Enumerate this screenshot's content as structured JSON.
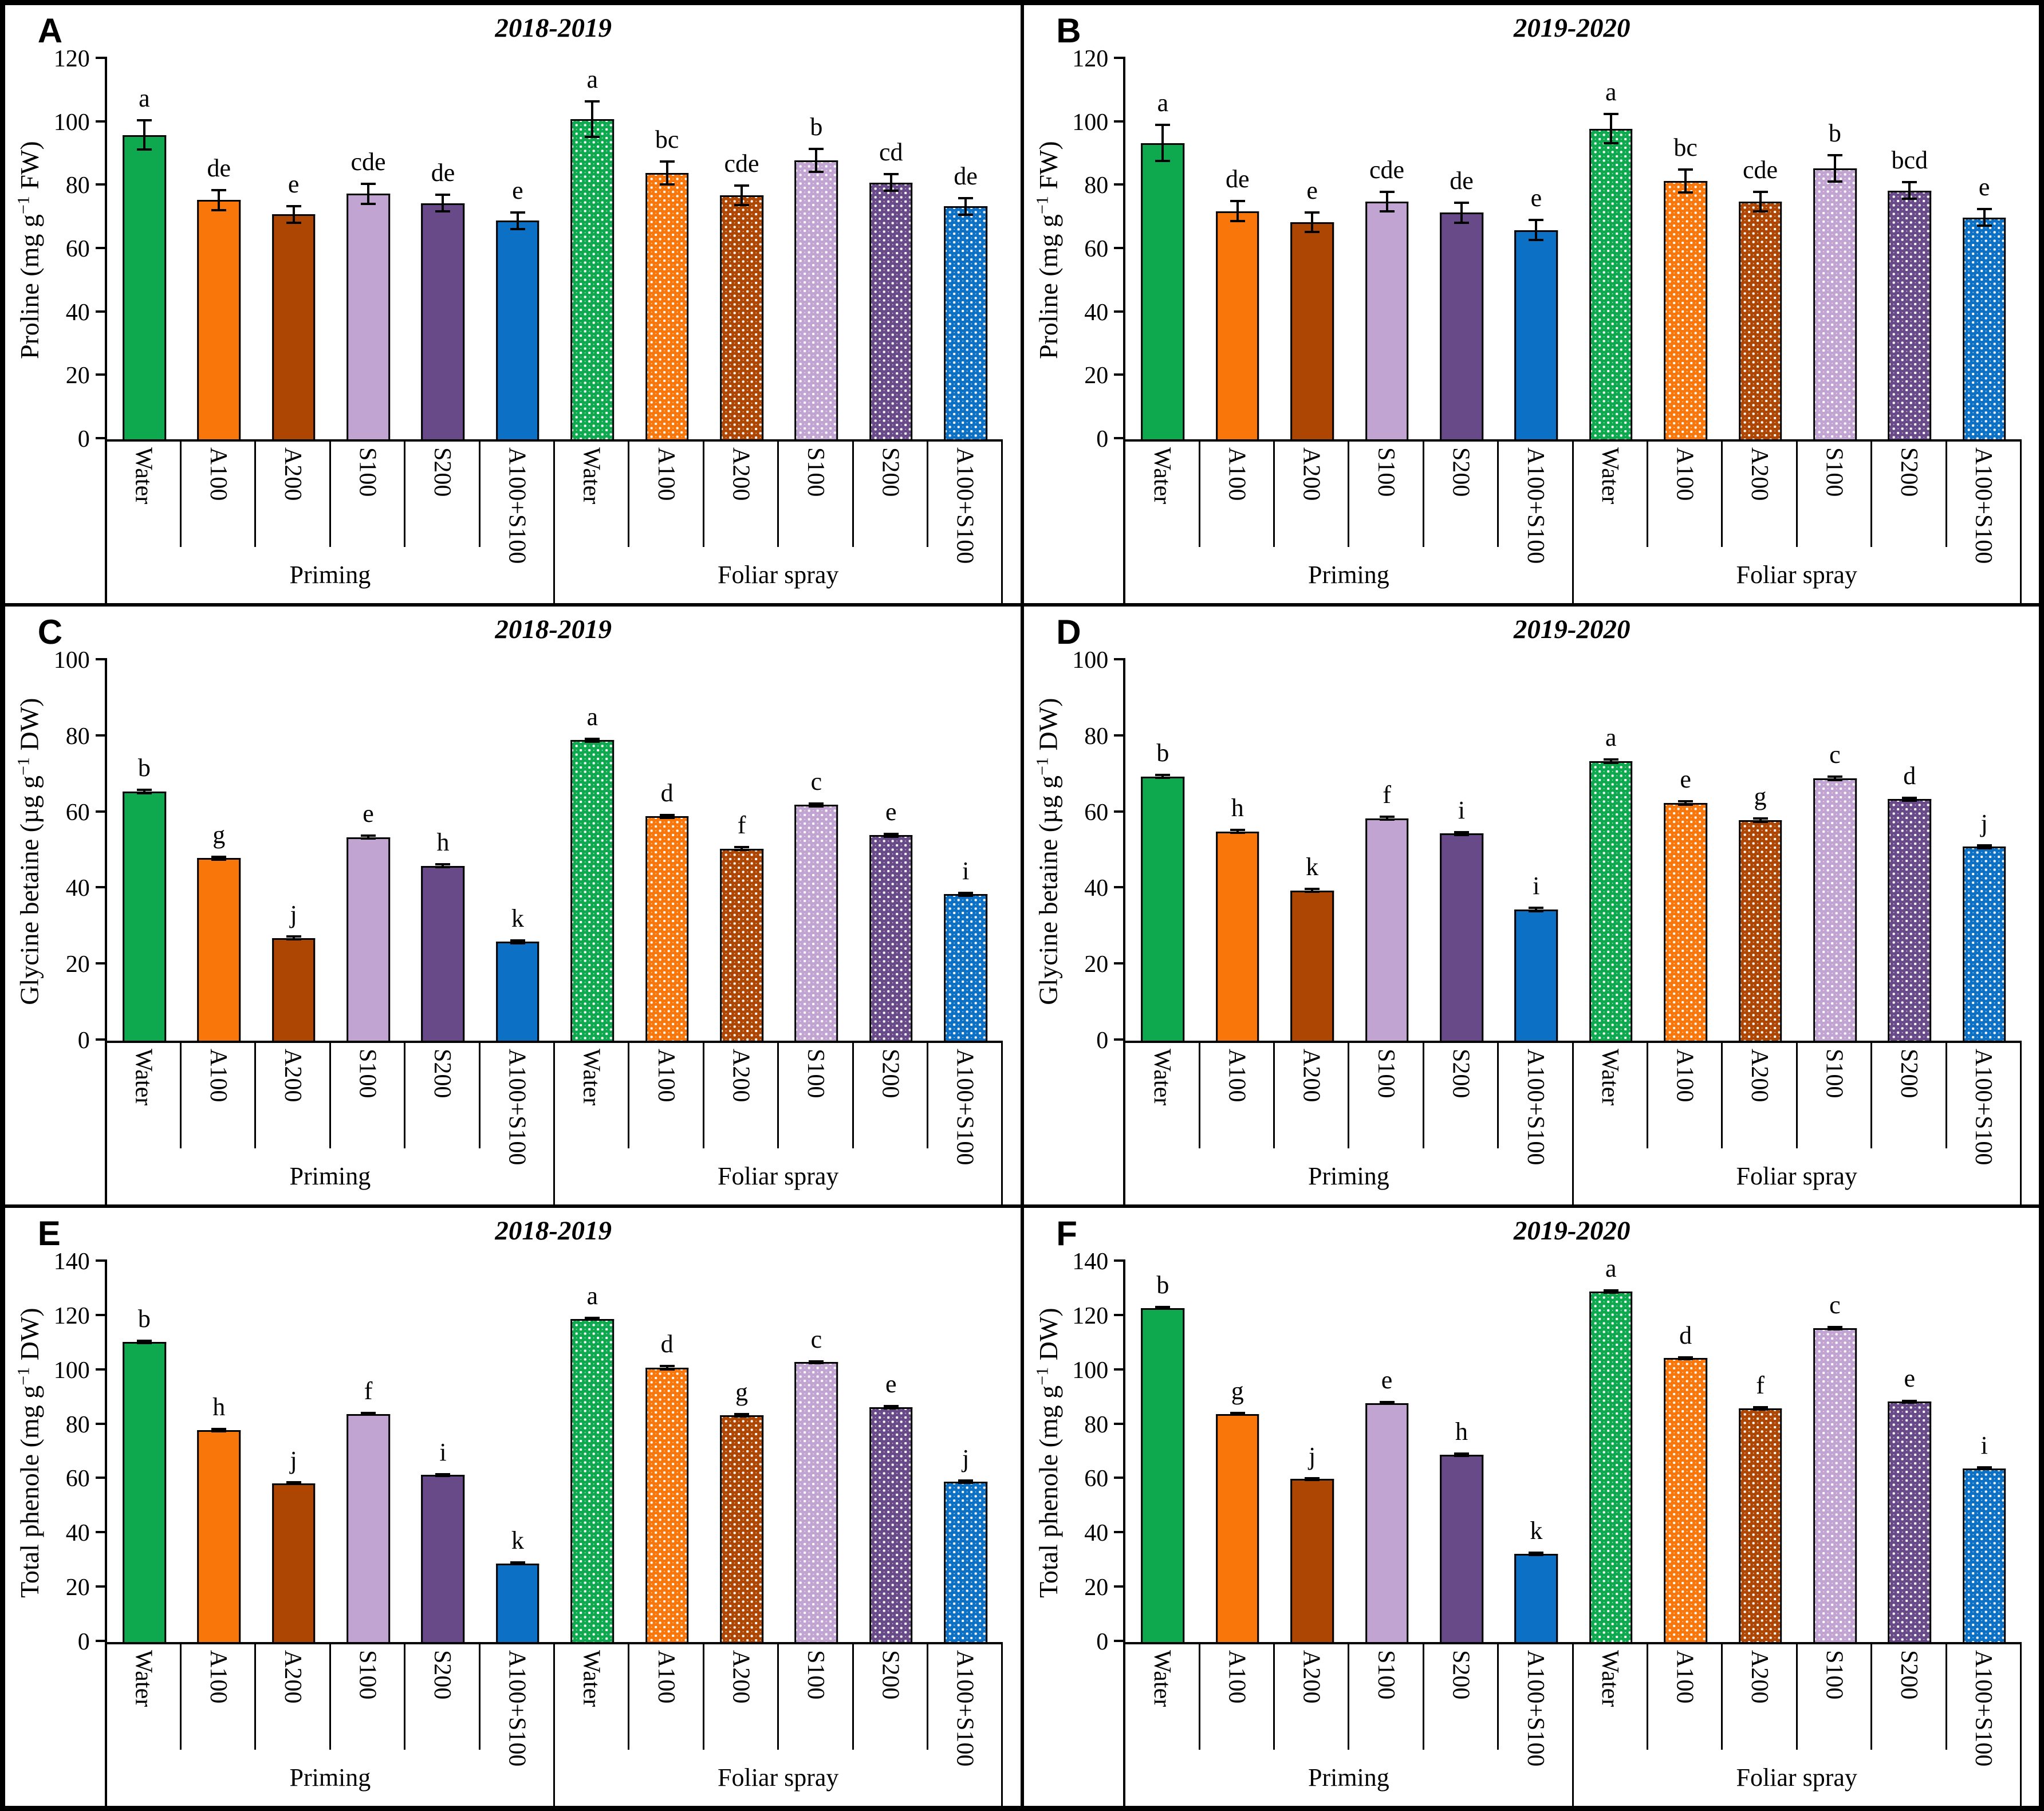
{
  "figure": {
    "treatment_labels": [
      "Water",
      "A100",
      "A200",
      "S100",
      "S200",
      "A100+S100"
    ],
    "group_labels": [
      "Priming",
      "Foliar spray"
    ],
    "season_titles": [
      "2018-2019",
      "2019-2020"
    ]
  },
  "colors": {
    "water": "#0ea94e",
    "a100": "#f8760a",
    "a200": "#ad4503",
    "s100": "#c2a4d2",
    "s200": "#694a88",
    "a100s100": "#0c70c4"
  },
  "chart_data": [
    {
      "type": "bar",
      "panel_letter": "A",
      "title": "2018-2019",
      "ylabel_pre": "Proline (mg g",
      "ylabel_sup": "−1",
      "ylabel_post": " FW)",
      "ymax": 120,
      "yticks": [
        0,
        20,
        40,
        60,
        80,
        100,
        120
      ],
      "groups": [
        {
          "label": "Priming",
          "pattern": false,
          "bars": [
            {
              "label": "Water",
              "color": "water",
              "value": 96,
              "err": 5,
              "letter": "a"
            },
            {
              "label": "A100",
              "color": "a100",
              "value": 75.5,
              "err": 3.5,
              "letter": "de"
            },
            {
              "label": "A200",
              "color": "a200",
              "value": 71,
              "err": 3,
              "letter": "e"
            },
            {
              "label": "S100",
              "color": "s100",
              "value": 77.5,
              "err": 3.5,
              "letter": "cde"
            },
            {
              "label": "S200",
              "color": "s200",
              "value": 74.5,
              "err": 3,
              "letter": "de"
            },
            {
              "label": "A100+S100",
              "color": "a100s100",
              "value": 69,
              "err": 3,
              "letter": "e"
            }
          ]
        },
        {
          "label": "Foliar spray",
          "pattern": true,
          "bars": [
            {
              "label": "Water",
              "color": "water",
              "value": 101,
              "err": 6,
              "letter": "a"
            },
            {
              "label": "A100",
              "color": "a100",
              "value": 84,
              "err": 4,
              "letter": "bc"
            },
            {
              "label": "A200",
              "color": "a200",
              "value": 77,
              "err": 3.5,
              "letter": "cde"
            },
            {
              "label": "S100",
              "color": "s100",
              "value": 88,
              "err": 4,
              "letter": "b"
            },
            {
              "label": "S200",
              "color": "s200",
              "value": 81,
              "err": 3,
              "letter": "cd"
            },
            {
              "label": "A100+S100",
              "color": "a100s100",
              "value": 73.5,
              "err": 3,
              "letter": "de"
            }
          ]
        }
      ]
    },
    {
      "type": "bar",
      "panel_letter": "B",
      "title": "2019-2020",
      "ylabel_pre": "Proline (mg g",
      "ylabel_sup": "−1",
      "ylabel_post": " FW)",
      "ymax": 120,
      "yticks": [
        0,
        20,
        40,
        60,
        80,
        100,
        120
      ],
      "groups": [
        {
          "label": "Priming",
          "pattern": false,
          "bars": [
            {
              "label": "Water",
              "color": "water",
              "value": 93.5,
              "err": 6,
              "letter": "a"
            },
            {
              "label": "A100",
              "color": "a100",
              "value": 72,
              "err": 3.5,
              "letter": "de"
            },
            {
              "label": "A200",
              "color": "a200",
              "value": 68.5,
              "err": 3.5,
              "letter": "e"
            },
            {
              "label": "S100",
              "color": "s100",
              "value": 75,
              "err": 3.5,
              "letter": "cde"
            },
            {
              "label": "S200",
              "color": "s200",
              "value": 71.5,
              "err": 3.5,
              "letter": "de"
            },
            {
              "label": "A100+S100",
              "color": "a100s100",
              "value": 66,
              "err": 3.5,
              "letter": "e"
            }
          ]
        },
        {
          "label": "Foliar spray",
          "pattern": true,
          "bars": [
            {
              "label": "Water",
              "color": "water",
              "value": 98,
              "err": 5,
              "letter": "a"
            },
            {
              "label": "A100",
              "color": "a100",
              "value": 81.5,
              "err": 4,
              "letter": "bc"
            },
            {
              "label": "A200",
              "color": "a200",
              "value": 75,
              "err": 3.5,
              "letter": "cde"
            },
            {
              "label": "S100",
              "color": "s100",
              "value": 85.5,
              "err": 4.5,
              "letter": "b"
            },
            {
              "label": "S200",
              "color": "s200",
              "value": 78.5,
              "err": 3,
              "letter": "bcd"
            },
            {
              "label": "A100+S100",
              "color": "a100s100",
              "value": 70,
              "err": 3,
              "letter": "e"
            }
          ]
        }
      ]
    },
    {
      "type": "bar",
      "panel_letter": "C",
      "title": "2018-2019",
      "ylabel_pre": "Glycine betaine (µg g",
      "ylabel_sup": "−1",
      "ylabel_post": " DW)",
      "ymax": 100,
      "yticks": [
        0,
        20,
        40,
        60,
        80,
        100
      ],
      "groups": [
        {
          "label": "Priming",
          "pattern": false,
          "bars": [
            {
              "label": "Water",
              "color": "water",
              "value": 65.5,
              "err": 0.7,
              "letter": "b"
            },
            {
              "label": "A100",
              "color": "a100",
              "value": 48,
              "err": 0.7,
              "letter": "g"
            },
            {
              "label": "A200",
              "color": "a200",
              "value": 27,
              "err": 0.7,
              "letter": "j"
            },
            {
              "label": "S100",
              "color": "s100",
              "value": 53.5,
              "err": 0.7,
              "letter": "e"
            },
            {
              "label": "S200",
              "color": "s200",
              "value": 46,
              "err": 0.7,
              "letter": "h"
            },
            {
              "label": "A100+S100",
              "color": "a100s100",
              "value": 26,
              "err": 0.7,
              "letter": "k"
            }
          ]
        },
        {
          "label": "Foliar spray",
          "pattern": true,
          "bars": [
            {
              "label": "Water",
              "color": "water",
              "value": 79,
              "err": 0.7,
              "letter": "a"
            },
            {
              "label": "A100",
              "color": "a100",
              "value": 59,
              "err": 0.7,
              "letter": "d"
            },
            {
              "label": "A200",
              "color": "a200",
              "value": 50.5,
              "err": 0.7,
              "letter": "f"
            },
            {
              "label": "S100",
              "color": "s100",
              "value": 62,
              "err": 0.7,
              "letter": "c"
            },
            {
              "label": "S200",
              "color": "s200",
              "value": 54,
              "err": 0.7,
              "letter": "e"
            },
            {
              "label": "A100+S100",
              "color": "a100s100",
              "value": 38.5,
              "err": 0.7,
              "letter": "i"
            }
          ]
        }
      ]
    },
    {
      "type": "bar",
      "panel_letter": "D",
      "title": "2019-2020",
      "ylabel_pre": "Glycine betaine (µg g",
      "ylabel_sup": "−1",
      "ylabel_post": " DW)",
      "ymax": 100,
      "yticks": [
        0,
        20,
        40,
        60,
        80,
        100
      ],
      "groups": [
        {
          "label": "Priming",
          "pattern": false,
          "bars": [
            {
              "label": "Water",
              "color": "water",
              "value": 69.5,
              "err": 0.7,
              "letter": "b"
            },
            {
              "label": "A100",
              "color": "a100",
              "value": 55,
              "err": 0.7,
              "letter": "h"
            },
            {
              "label": "A200",
              "color": "a200",
              "value": 39.5,
              "err": 0.7,
              "letter": "k"
            },
            {
              "label": "S100",
              "color": "s100",
              "value": 58.5,
              "err": 0.7,
              "letter": "f"
            },
            {
              "label": "S200",
              "color": "s200",
              "value": 54.5,
              "err": 0.7,
              "letter": "i"
            },
            {
              "label": "A100+S100",
              "color": "a100s100",
              "value": 34.5,
              "err": 0.7,
              "letter": "i"
            }
          ]
        },
        {
          "label": "Foliar spray",
          "pattern": true,
          "bars": [
            {
              "label": "Water",
              "color": "water",
              "value": 73.5,
              "err": 0.7,
              "letter": "a"
            },
            {
              "label": "A100",
              "color": "a100",
              "value": 62.5,
              "err": 0.7,
              "letter": "e"
            },
            {
              "label": "A200",
              "color": "a200",
              "value": 58,
              "err": 0.7,
              "letter": "g"
            },
            {
              "label": "S100",
              "color": "s100",
              "value": 69,
              "err": 0.7,
              "letter": "c"
            },
            {
              "label": "S200",
              "color": "s200",
              "value": 63.5,
              "err": 0.7,
              "letter": "d"
            },
            {
              "label": "A100+S100",
              "color": "a100s100",
              "value": 51,
              "err": 0.7,
              "letter": "j"
            }
          ]
        }
      ]
    },
    {
      "type": "bar",
      "panel_letter": "E",
      "title": "2018-2019",
      "ylabel_pre": "Total phenole (mg g",
      "ylabel_sup": "−1",
      "ylabel_post": " DW)",
      "ymax": 140,
      "yticks": [
        0,
        20,
        40,
        60,
        80,
        100,
        120,
        140
      ],
      "groups": [
        {
          "label": "Priming",
          "pattern": false,
          "bars": [
            {
              "label": "Water",
              "color": "water",
              "value": 110.5,
              "err": 0.8,
              "letter": "b"
            },
            {
              "label": "A100",
              "color": "a100",
              "value": 78,
              "err": 0.8,
              "letter": "h"
            },
            {
              "label": "A200",
              "color": "a200",
              "value": 58.5,
              "err": 0.8,
              "letter": "j"
            },
            {
              "label": "S100",
              "color": "s100",
              "value": 84,
              "err": 0.8,
              "letter": "f"
            },
            {
              "label": "S200",
              "color": "s200",
              "value": 61.5,
              "err": 0.8,
              "letter": "i"
            },
            {
              "label": "A100+S100",
              "color": "a100s100",
              "value": 29,
              "err": 0.8,
              "letter": "k"
            }
          ]
        },
        {
          "label": "Foliar spray",
          "pattern": true,
          "bars": [
            {
              "label": "Water",
              "color": "water",
              "value": 119,
              "err": 0.8,
              "letter": "a"
            },
            {
              "label": "A100",
              "color": "a100",
              "value": 101,
              "err": 1,
              "letter": "d"
            },
            {
              "label": "A200",
              "color": "a200",
              "value": 83.5,
              "err": 0.8,
              "letter": "g"
            },
            {
              "label": "S100",
              "color": "s100",
              "value": 103,
              "err": 0.8,
              "letter": "c"
            },
            {
              "label": "S200",
              "color": "s200",
              "value": 86.5,
              "err": 0.8,
              "letter": "e"
            },
            {
              "label": "A100+S100",
              "color": "a100s100",
              "value": 59,
              "err": 0.8,
              "letter": "j"
            }
          ]
        }
      ]
    },
    {
      "type": "bar",
      "panel_letter": "F",
      "title": "2019-2020",
      "ylabel_pre": "Total phenole (mg g",
      "ylabel_sup": "−1",
      "ylabel_post": " DW)",
      "ymax": 140,
      "yticks": [
        0,
        20,
        40,
        60,
        80,
        100,
        120,
        140
      ],
      "groups": [
        {
          "label": "Priming",
          "pattern": false,
          "bars": [
            {
              "label": "Water",
              "color": "water",
              "value": 123,
              "err": 0.8,
              "letter": "b"
            },
            {
              "label": "A100",
              "color": "a100",
              "value": 84,
              "err": 0.8,
              "letter": "g"
            },
            {
              "label": "A200",
              "color": "a200",
              "value": 60,
              "err": 0.8,
              "letter": "j"
            },
            {
              "label": "S100",
              "color": "s100",
              "value": 88,
              "err": 0.8,
              "letter": "e"
            },
            {
              "label": "S200",
              "color": "s200",
              "value": 69,
              "err": 0.8,
              "letter": "h"
            },
            {
              "label": "A100+S100",
              "color": "a100s100",
              "value": 32.5,
              "err": 0.8,
              "letter": "k"
            }
          ]
        },
        {
          "label": "Foliar spray",
          "pattern": true,
          "bars": [
            {
              "label": "Water",
              "color": "water",
              "value": 129,
              "err": 0.8,
              "letter": "a"
            },
            {
              "label": "A100",
              "color": "a100",
              "value": 104.5,
              "err": 0.8,
              "letter": "d"
            },
            {
              "label": "A200",
              "color": "a200",
              "value": 86,
              "err": 0.8,
              "letter": "f"
            },
            {
              "label": "S100",
              "color": "s100",
              "value": 115.5,
              "err": 0.8,
              "letter": "c"
            },
            {
              "label": "S200",
              "color": "s200",
              "value": 88.5,
              "err": 0.8,
              "letter": "e"
            },
            {
              "label": "A100+S100",
              "color": "a100s100",
              "value": 64,
              "err": 0.8,
              "letter": "i"
            }
          ]
        }
      ]
    }
  ]
}
